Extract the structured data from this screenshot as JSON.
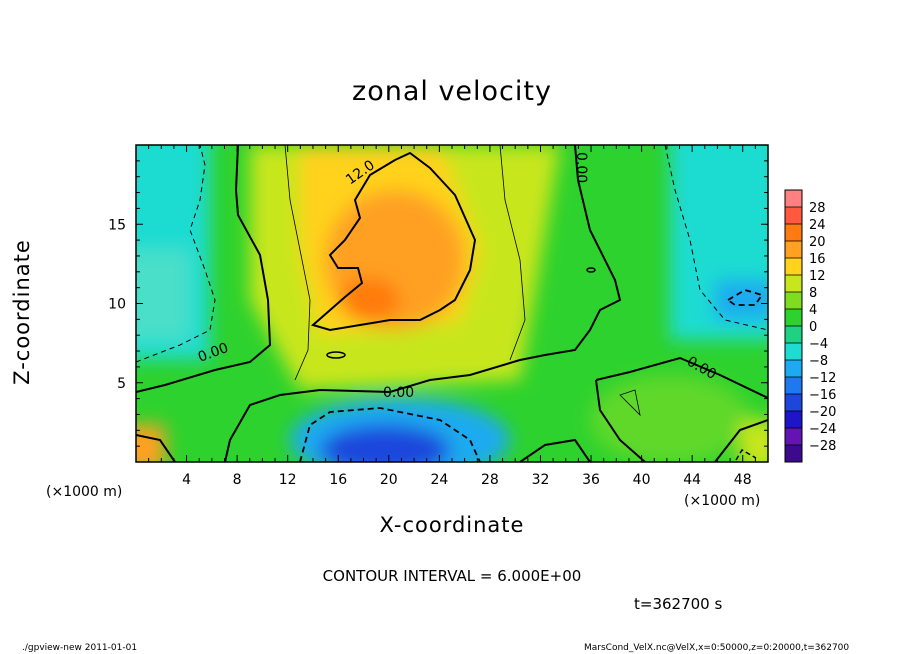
{
  "chart_data": {
    "type": "heatmap",
    "title": "zonal velocity",
    "xlabel": "X-coordinate",
    "ylabel": "Z-coordinate",
    "x_unit_label": "(×1000 m)",
    "xlim": [
      0,
      50
    ],
    "ylim": [
      0,
      20
    ],
    "x_ticks": [
      4,
      8,
      12,
      16,
      20,
      24,
      28,
      32,
      36,
      40,
      44,
      48
    ],
    "y_ticks": [
      5,
      10,
      15
    ],
    "colorbar": {
      "levels": [
        28,
        24,
        20,
        16,
        12,
        8,
        4,
        0,
        -4,
        -8,
        -12,
        -16,
        -20,
        -24,
        -28
      ],
      "labels": [
        "28",
        "24",
        "20",
        "16",
        "12",
        "8",
        "4",
        "0",
        "−4",
        "−8",
        "−12",
        "−16",
        "−20",
        "−24",
        "−28"
      ],
      "colors": [
        "#ff8080",
        "#ff5a40",
        "#ff7a10",
        "#ffa020",
        "#ffd21e",
        "#c8e61e",
        "#7fdc1e",
        "#2ed22e",
        "#1ed282",
        "#1edcd2",
        "#1eaaf0",
        "#1e78f0",
        "#1e46dc",
        "#1e14c8",
        "#6414b4"
      ]
    },
    "contour_labels": [
      "12.0",
      "0.00",
      "0.00",
      "0.00",
      "0.00"
    ],
    "annotations": {
      "contour_interval": "CONTOUR INTERVAL = 6.000E+00",
      "time": "t=362700 s"
    }
  },
  "footer": {
    "left": "./gpview-new  2011-01-01",
    "right": "MarsCond_VelX.nc@VelX,x=0:50000,z=0:20000,t=362700"
  }
}
